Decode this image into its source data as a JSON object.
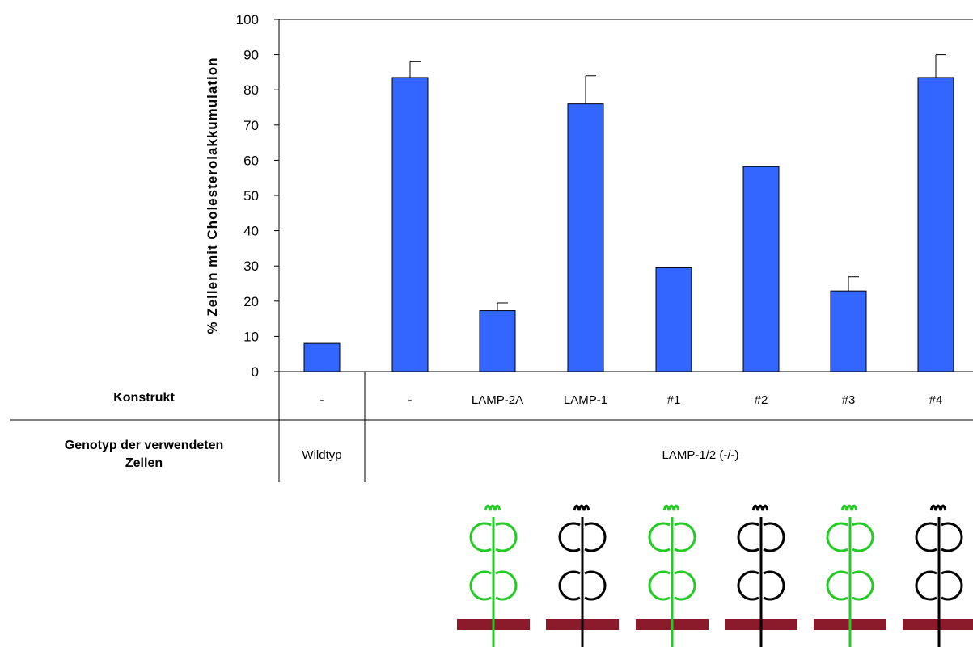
{
  "chart_data": {
    "type": "bar",
    "ylabel": "% Zellen mit Cholesterolakkumulation",
    "ylim": [
      0,
      100
    ],
    "yticks": [
      0,
      10,
      20,
      30,
      40,
      50,
      60,
      70,
      80,
      90,
      100
    ],
    "bar_color": "#3366ff",
    "categories": [
      "-",
      "-",
      "LAMP-2A",
      "LAMP-1",
      "#1",
      "#2",
      "#3",
      "#4"
    ],
    "values": [
      8,
      83.5,
      17.3,
      76,
      29.5,
      58.2,
      22.9,
      83.5
    ],
    "error": [
      0,
      4.5,
      2.2,
      8,
      0,
      0,
      4,
      6.5
    ]
  },
  "table": {
    "row1_label": "Konstrukt",
    "row2_label_line1": "Genotyp der verwendeten",
    "row2_label_line2": "Zellen",
    "genotype_wildtype": "Wildtyp",
    "genotype_knockout": "LAMP-1/2 (-/-)"
  },
  "diagram": {
    "colors": [
      "green",
      "black",
      "green",
      "black",
      "green",
      "black"
    ],
    "green": "#22cc22",
    "black": "#000000",
    "membrane_color": "#8b1a2b"
  }
}
